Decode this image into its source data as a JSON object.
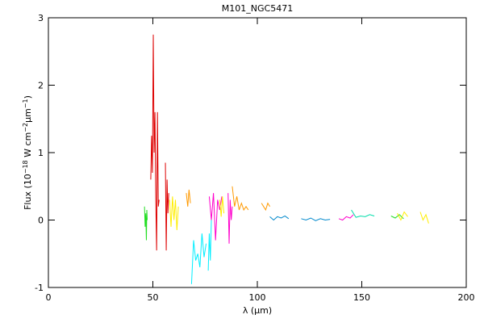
{
  "chart_data": {
    "type": "line",
    "title": "M101_NGC5471",
    "x_label": "λ (µm)",
    "y_label": [
      "Flux (10",
      "−18",
      " W cm",
      "−2",
      "µm",
      "−1",
      ")"
    ],
    "xlim": [
      0,
      200
    ],
    "xticks": [
      0,
      50,
      100,
      150,
      200
    ],
    "ylim": [
      -1,
      3
    ],
    "yticks": [
      -1,
      0,
      1,
      2,
      3
    ],
    "series": [
      {
        "color": "#22dd22",
        "x": [
          46.0,
          46.3,
          46.6,
          46.9,
          47.1,
          47.3
        ],
        "values": [
          0.2,
          -0.1,
          0.1,
          -0.3,
          0.15,
          0.0
        ]
      },
      {
        "color": "#dd0000",
        "x": [
          49.0,
          49.4,
          49.8,
          50.2,
          50.6,
          51.0,
          51.4,
          51.8,
          52.2,
          52.6,
          53.0
        ],
        "values": [
          0.6,
          1.25,
          0.7,
          2.75,
          1.0,
          1.6,
          0.3,
          -0.45,
          1.6,
          0.2,
          0.3
        ]
      },
      {
        "color": "#dd0000",
        "x": [
          56.0,
          56.4,
          56.8,
          57.2,
          57.6
        ],
        "values": [
          0.85,
          -0.45,
          0.6,
          0.1,
          0.4
        ]
      },
      {
        "color": "#ffee00",
        "x": [
          58.0,
          58.7,
          59.4,
          60.1,
          60.8,
          61.5,
          62.2
        ],
        "values": [
          0.3,
          -0.1,
          0.35,
          0.0,
          0.3,
          -0.15,
          0.2
        ]
      },
      {
        "color": "#ff9900",
        "x": [
          66.0,
          66.7,
          67.3,
          68.0
        ],
        "values": [
          0.4,
          0.2,
          0.45,
          0.25
        ]
      },
      {
        "color": "#00eeff",
        "x": [
          68.5,
          69.5,
          70.5,
          71.5,
          72.5,
          73.5,
          74.5,
          75.5
        ],
        "values": [
          -0.95,
          -0.3,
          -0.6,
          -0.5,
          -0.7,
          -0.2,
          -0.55,
          -0.35
        ]
      },
      {
        "color": "#00eeff",
        "x": [
          76.5,
          77.0,
          77.5,
          78.0
        ],
        "values": [
          -0.75,
          -0.2,
          -0.6,
          0.0
        ]
      },
      {
        "color": "#ff00cc",
        "x": [
          77.0,
          78.0,
          79.0,
          80.0,
          81.0,
          82.0,
          83.0
        ],
        "values": [
          0.35,
          0.0,
          0.4,
          -0.3,
          0.3,
          0.15,
          0.35
        ]
      },
      {
        "color": "#ffee00",
        "x": [
          82.0,
          82.7,
          83.3,
          84.0
        ],
        "values": [
          0.3,
          0.05,
          0.35,
          0.1
        ]
      },
      {
        "color": "#ff00cc",
        "x": [
          86.0,
          86.5,
          87.0,
          87.5,
          88.0
        ],
        "values": [
          0.4,
          -0.35,
          0.3,
          0.0,
          0.2
        ]
      },
      {
        "color": "#ff9900",
        "x": [
          88.0,
          89.1,
          90.2,
          91.3,
          92.4,
          93.5,
          94.6,
          95.7
        ],
        "values": [
          0.5,
          0.2,
          0.35,
          0.15,
          0.25,
          0.15,
          0.2,
          0.15
        ]
      },
      {
        "color": "#ff9900",
        "x": [
          102.0,
          103.0,
          104.0,
          105.0,
          106.0
        ],
        "values": [
          0.25,
          0.2,
          0.15,
          0.25,
          0.2
        ]
      },
      {
        "color": "#0088cc",
        "x": [
          106.0,
          107.8,
          109.6,
          111.4,
          113.2,
          115.0
        ],
        "values": [
          0.05,
          0.0,
          0.05,
          0.03,
          0.06,
          0.02
        ]
      },
      {
        "color": "#0088cc",
        "x": [
          121.0,
          123.3,
          125.6,
          127.9,
          130.2,
          132.5,
          134.8
        ],
        "values": [
          0.02,
          0.0,
          0.03,
          -0.01,
          0.02,
          0.0,
          0.01
        ]
      },
      {
        "color": "#ff00cc",
        "x": [
          139.0,
          140.8,
          142.6,
          144.4,
          146.0
        ],
        "values": [
          0.02,
          0.0,
          0.05,
          0.03,
          0.08
        ]
      },
      {
        "color": "#00ddaa",
        "x": [
          145.0,
          147.2,
          149.4,
          151.6,
          153.8,
          156.0
        ],
        "values": [
          0.15,
          0.04,
          0.06,
          0.05,
          0.08,
          0.06
        ]
      },
      {
        "color": "#22dd22",
        "x": [
          164.0,
          166.0,
          168.0,
          170.0
        ],
        "values": [
          0.06,
          0.03,
          0.08,
          0.02
        ]
      },
      {
        "color": "#ffee00",
        "x": [
          167.0,
          168.7,
          170.3,
          172.0
        ],
        "values": [
          0.1,
          0.0,
          0.12,
          0.05
        ]
      },
      {
        "color": "#ffee00",
        "x": [
          178.0,
          179.3,
          180.7,
          182.0
        ],
        "values": [
          0.12,
          0.0,
          0.08,
          -0.05
        ]
      }
    ]
  }
}
